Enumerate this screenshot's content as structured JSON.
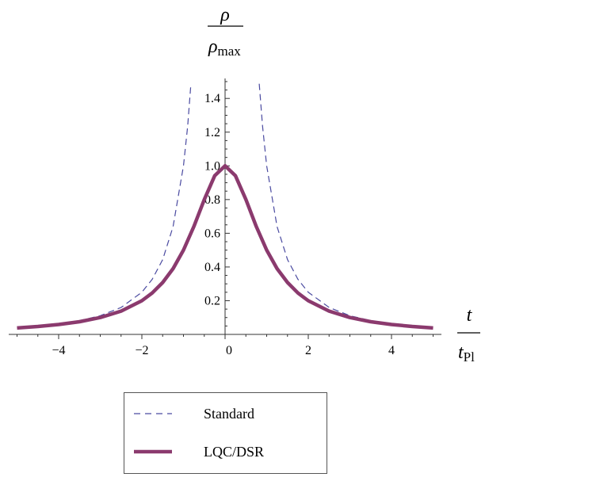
{
  "chart_data": {
    "type": "line",
    "xlabel": {
      "var": "t",
      "sub": "Pl"
    },
    "ylabel": {
      "var": "ρ",
      "sub": "max"
    },
    "xlim": [
      -5.2,
      5.2
    ],
    "ylim": [
      0,
      1.5
    ],
    "x_ticks": [
      -4,
      -2,
      0,
      2,
      4
    ],
    "x_tick_labels": [
      "−4",
      "−2",
      "0",
      "2",
      "4"
    ],
    "y_ticks": [
      0.2,
      0.4,
      0.6,
      0.8,
      1.0,
      1.2,
      1.4
    ],
    "y_tick_labels": [
      "0.2",
      "0.4",
      "0.6",
      "0.8",
      "1.0",
      "1.2",
      "1.4"
    ],
    "grid": false,
    "legend_position": "bottom",
    "series": [
      {
        "name": "Standard",
        "style": "dashed",
        "color": "#4a4aa0",
        "x": [
          -5.0,
          -4.5,
          -4.0,
          -3.5,
          -3.0,
          -2.5,
          -2.0,
          -1.75,
          -1.5,
          -1.25,
          -1.0,
          -0.9,
          -0.82,
          0.82,
          0.9,
          1.0,
          1.25,
          1.5,
          1.75,
          2.0,
          2.5,
          3.0,
          3.5,
          4.0,
          4.5,
          5.0
        ],
        "y": [
          0.04,
          0.049,
          0.063,
          0.082,
          0.111,
          0.16,
          0.25,
          0.327,
          0.444,
          0.64,
          1.0,
          1.235,
          1.487,
          1.487,
          1.235,
          1.0,
          0.64,
          0.444,
          0.327,
          0.25,
          0.16,
          0.111,
          0.082,
          0.063,
          0.049,
          0.04
        ]
      },
      {
        "name": "LQC/DSR",
        "style": "solid",
        "color": "#8b3a6e",
        "x": [
          -5.0,
          -4.5,
          -4.0,
          -3.5,
          -3.0,
          -2.5,
          -2.0,
          -1.75,
          -1.5,
          -1.25,
          -1.0,
          -0.75,
          -0.5,
          -0.25,
          0.0,
          0.25,
          0.5,
          0.75,
          1.0,
          1.25,
          1.5,
          1.75,
          2.0,
          2.5,
          3.0,
          3.5,
          4.0,
          4.5,
          5.0
        ],
        "y": [
          0.038,
          0.047,
          0.059,
          0.075,
          0.1,
          0.138,
          0.2,
          0.246,
          0.308,
          0.39,
          0.5,
          0.64,
          0.8,
          0.941,
          1.0,
          0.941,
          0.8,
          0.64,
          0.5,
          0.39,
          0.308,
          0.246,
          0.2,
          0.138,
          0.1,
          0.075,
          0.059,
          0.047,
          0.038
        ]
      }
    ]
  },
  "legend": {
    "items": [
      {
        "label": "Standard",
        "style": "dashed",
        "color": "#4a4aa0"
      },
      {
        "label": "LQC/DSR",
        "style": "solid",
        "color": "#8b3a6e"
      }
    ]
  }
}
